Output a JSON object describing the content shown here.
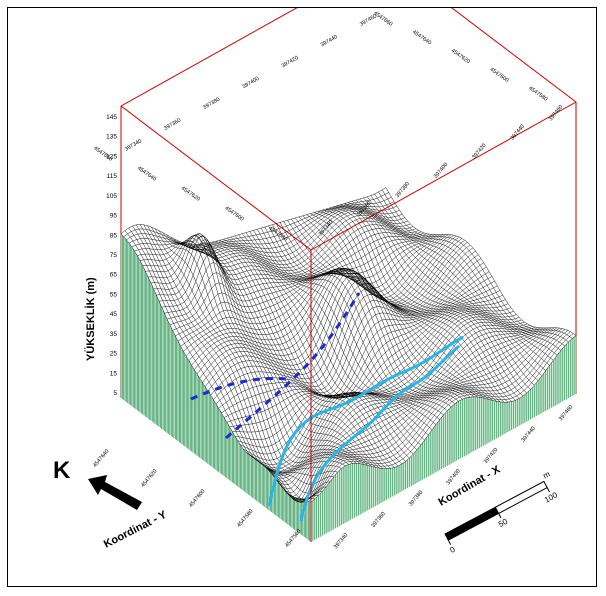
{
  "figure": {
    "z_axis_title": "YÜKSEKLİK (m)",
    "x_axis_title": "Koordinat - X",
    "y_axis_title": "Koordinat - Y",
    "north_label": "K",
    "scale_unit": "m",
    "scale_labels": [
      "0",
      "50",
      "100"
    ]
  },
  "z_ticks": [
    "5",
    "15",
    "25",
    "35",
    "45",
    "55",
    "65",
    "75",
    "85",
    "95",
    "105",
    "115",
    "125",
    "135",
    "145"
  ],
  "x_ticks_front": [
    "397340",
    "397360",
    "397380",
    "397400",
    "397420",
    "397440",
    "397460"
  ],
  "y_ticks_front": [
    "4547560",
    "4547580",
    "4547600",
    "4547620",
    "4547640"
  ],
  "x_ticks_top_back": [
    "397340",
    "397360",
    "397380",
    "397400",
    "397420",
    "397440",
    "397460"
  ],
  "y_ticks_top_back": [
    "4547580",
    "4547600",
    "4547620",
    "4547640",
    "4547660"
  ],
  "x_ticks_top_mid": [
    "397340",
    "397360",
    "397380",
    "397400",
    "397420",
    "397440",
    "397460"
  ],
  "y_ticks_top_left": [
    "4547580",
    "4547600",
    "4547620",
    "4547640",
    "4547660"
  ],
  "colors": {
    "frame": "#cc0000",
    "mesh": "#000000",
    "skirt": "#2e8b57",
    "skirt_fill": "#c8eed4",
    "road": "#29b6e6",
    "path": "#1a2ccc"
  }
}
